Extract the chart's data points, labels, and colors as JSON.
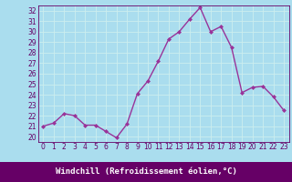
{
  "x": [
    0,
    1,
    2,
    3,
    4,
    5,
    6,
    7,
    8,
    9,
    10,
    11,
    12,
    13,
    14,
    15,
    16,
    17,
    18,
    19,
    20,
    21,
    22,
    23
  ],
  "y": [
    21.0,
    21.3,
    22.2,
    22.0,
    21.1,
    21.1,
    20.5,
    19.9,
    21.2,
    24.1,
    25.3,
    27.2,
    29.3,
    30.0,
    31.2,
    32.3,
    30.0,
    30.5,
    28.5,
    24.2,
    24.7,
    24.8,
    23.8,
    22.5
  ],
  "line_color": "#993399",
  "marker": "D",
  "marker_size": 2.0,
  "bg_color": "#aaddee",
  "grid_color": "#cceeee",
  "xlabel": "Windchill (Refroidissement éolien,°C)",
  "xlim": [
    -0.5,
    23.5
  ],
  "ylim": [
    19.5,
    32.5
  ],
  "yticks": [
    20,
    21,
    22,
    23,
    24,
    25,
    26,
    27,
    28,
    29,
    30,
    31,
    32
  ],
  "xticks": [
    0,
    1,
    2,
    3,
    4,
    5,
    6,
    7,
    8,
    9,
    10,
    11,
    12,
    13,
    14,
    15,
    16,
    17,
    18,
    19,
    20,
    21,
    22,
    23
  ],
  "tick_label_fontsize": 5.5,
  "xlabel_fontsize": 6.5,
  "linewidth": 1.0,
  "bottom_bar_color": "#660066",
  "text_color": "#660066"
}
